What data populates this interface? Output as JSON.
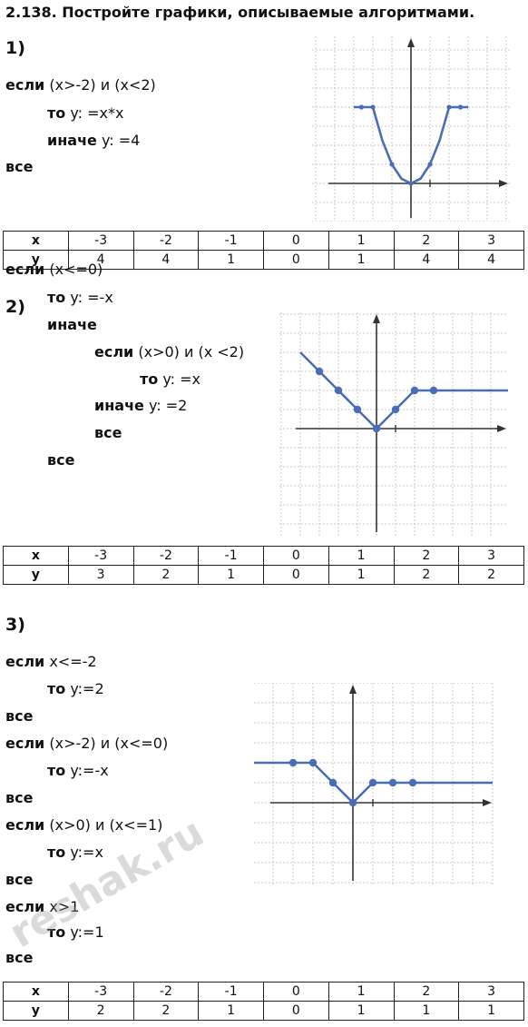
{
  "title": "2.138. Постройте графики, описываемые алгоритмами.",
  "parts": [
    {
      "label": "1)",
      "lines": [
        {
          "kw": "если",
          "text": " (x>-2) и (x<2)"
        },
        {
          "kw": "то",
          "text": " y: =x*x"
        },
        {
          "kw": "иначе",
          "text": " y: =4"
        },
        {
          "kw": "все",
          "text": ""
        }
      ],
      "table": {
        "xh": "x",
        "yh": "y",
        "x": [
          "-3",
          "-2",
          "-1",
          "0",
          "1",
          "2",
          "3"
        ],
        "y": [
          "4",
          "4",
          "1",
          "0",
          "1",
          "4",
          "4"
        ]
      }
    },
    {
      "label": "2)",
      "lines": [
        {
          "kw": "если",
          "text": " (x<=0)"
        },
        {
          "kw": "то",
          "text": " y: =-x"
        },
        {
          "kw": "иначе",
          "text": ""
        },
        {
          "kw": "если",
          "text": " (x>0) и (x <2)"
        },
        {
          "kw": "то",
          "text": " y: =x"
        },
        {
          "kw": "иначе",
          "text": " y: =2"
        },
        {
          "kw": "все",
          "text": ""
        },
        {
          "kw": "все",
          "text": ""
        }
      ],
      "table": {
        "xh": "x",
        "yh": "y",
        "x": [
          "-3",
          "-2",
          "-1",
          "0",
          "1",
          "2",
          "3"
        ],
        "y": [
          "3",
          "2",
          "1",
          "0",
          "1",
          "2",
          "2"
        ]
      }
    },
    {
      "label": "3)",
      "lines": [
        {
          "kw": "если",
          "text": " x<=-2"
        },
        {
          "kw": "то",
          "text": " y:=2"
        },
        {
          "kw": "все",
          "text": ""
        },
        {
          "kw": "если",
          "text": " (x>-2) и (x<=0)"
        },
        {
          "kw": "то",
          "text": " y:=-x"
        },
        {
          "kw": "все",
          "text": ""
        },
        {
          "kw": "если",
          "text": " (x>0) и (x<=1)"
        },
        {
          "kw": "то",
          "text": " y:=x"
        },
        {
          "kw": "все",
          "text": ""
        },
        {
          "kw": "если",
          "text": " x>1"
        },
        {
          "kw": "то",
          "text": " y:=1"
        },
        {
          "kw": "все",
          "text": ""
        }
      ],
      "table": {
        "xh": "x",
        "yh": "y",
        "x": [
          "-3",
          "-2",
          "-1",
          "0",
          "1",
          "2",
          "3"
        ],
        "y": [
          "2",
          "2",
          "1",
          "0",
          "1",
          "1",
          "1"
        ]
      }
    }
  ],
  "watermark": "reshak.ru",
  "colors": {
    "curve": "#4a6db8",
    "grid": "#c9c9c9",
    "axis": "#333333"
  },
  "chart_data": [
    {
      "type": "line",
      "title": "",
      "series": [
        {
          "x": [
            -3,
            -2,
            -1.5,
            -1,
            -0.5,
            0,
            0.5,
            1,
            1.5,
            2,
            3
          ],
          "y": [
            4,
            4,
            2.25,
            1,
            0.25,
            0,
            0.25,
            1,
            2.25,
            4,
            4
          ]
        }
      ],
      "markers": [
        [
          -2.6,
          4
        ],
        [
          -2,
          4
        ],
        [
          -1,
          1
        ],
        [
          0,
          0
        ],
        [
          1,
          1
        ],
        [
          2,
          4
        ],
        [
          2.6,
          4
        ]
      ],
      "xlim": [
        -5,
        5
      ],
      "ylim": [
        -1,
        8
      ],
      "grid": true
    },
    {
      "type": "line",
      "title": "",
      "series": [
        {
          "x": [
            -4,
            -3,
            -2,
            -1,
            0,
            1,
            2,
            3,
            7
          ],
          "y": [
            4,
            3,
            2,
            1,
            0,
            1,
            2,
            2,
            2
          ]
        }
      ],
      "markers": [
        [
          -3,
          3
        ],
        [
          -2,
          2
        ],
        [
          -1,
          1
        ],
        [
          0,
          0
        ],
        [
          1,
          1
        ],
        [
          2,
          2
        ],
        [
          3,
          2
        ]
      ],
      "xlim": [
        -5,
        7
      ],
      "ylim": [
        -3,
        6
      ],
      "grid": true
    },
    {
      "type": "line",
      "title": "",
      "series": [
        {
          "x": [
            -5,
            -3,
            -2,
            -1,
            0,
            1,
            2,
            3,
            7
          ],
          "y": [
            2,
            2,
            2,
            1,
            0,
            1,
            1,
            1,
            1
          ]
        }
      ],
      "markers": [
        [
          -3,
          2
        ],
        [
          -2,
          2
        ],
        [
          -1,
          1
        ],
        [
          0,
          0
        ],
        [
          1,
          1
        ],
        [
          2,
          1
        ],
        [
          3,
          1
        ]
      ],
      "xlim": [
        -5,
        7
      ],
      "ylim": [
        -3,
        5
      ],
      "grid": true
    }
  ]
}
